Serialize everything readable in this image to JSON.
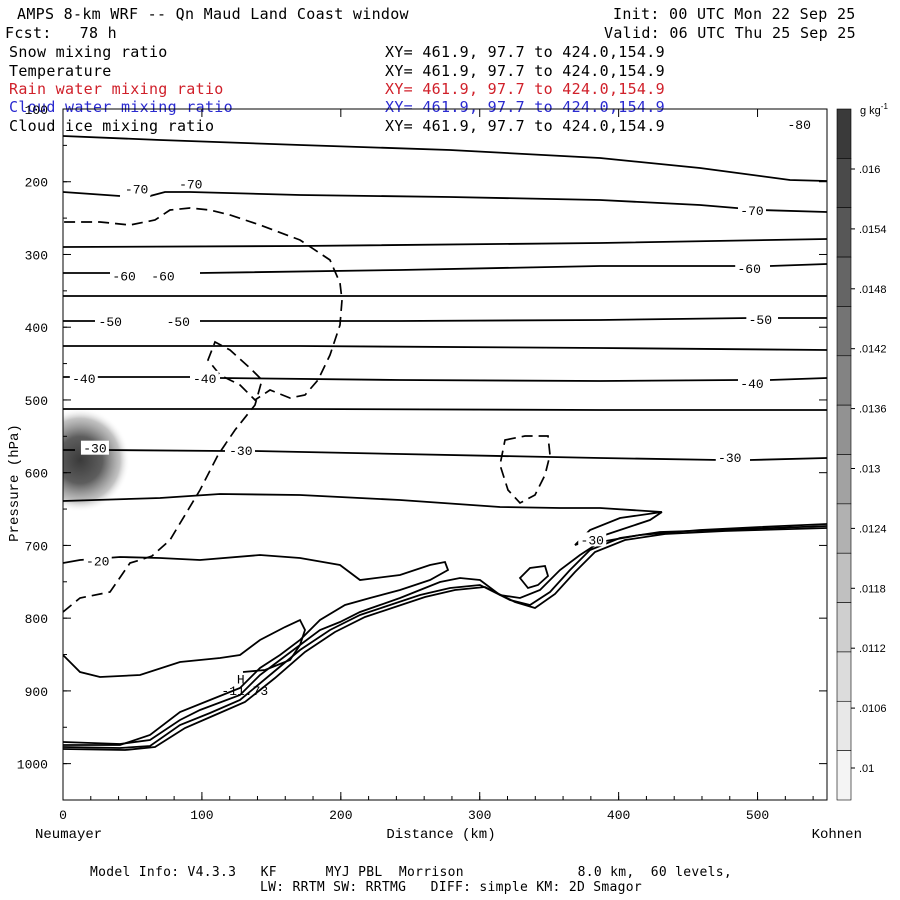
{
  "header": {
    "title": "AMPS 8-km WRF -- Qn Maud Land Coast window",
    "forecast": "Fcst:   78 h",
    "init": "Init: 00 UTC Mon 22 Sep 25",
    "valid": "Valid: 06 UTC Thu 25 Sep 25"
  },
  "legend": [
    {
      "name": "Snow mixing ratio",
      "xy": "XY= 461.9, 97.7 to 424.0,154.9",
      "color": "#000000"
    },
    {
      "name": "Temperature",
      "xy": "XY= 461.9, 97.7 to 424.0,154.9",
      "color": "#000000"
    },
    {
      "name": "Rain water mixing ratio",
      "xy": "XY= 461.9, 97.7 to 424.0,154.9",
      "color": "#d0202a"
    },
    {
      "name": "Cloud water mixing ratio",
      "xy": "XY= 461.9, 97.7 to 424.0,154.9",
      "color": "#2a2ad0"
    },
    {
      "name": "Cloud ice mixing ratio",
      "xy": "XY= 461.9, 97.7 to 424.0,154.9",
      "color": "#000000"
    }
  ],
  "footer": {
    "line1": "Model Info: V4.3.3   KF      MYJ PBL  Morrison              8.0 km,  60 levels,",
    "line2": "LW: RRTM SW: RRTMG   DIFF: simple KM: 2D Smagor"
  },
  "chart_data": {
    "type": "contour",
    "title": "AMPS 8-km WRF -- Qn Maud Land Coast window",
    "xlabel": "Distance (km)",
    "ylabel": "Pressure (hPa)",
    "xlim": [
      0,
      550
    ],
    "ylim": [
      1050,
      100
    ],
    "x_ticks": [
      0,
      100,
      200,
      300,
      400,
      500
    ],
    "y_ticks": [
      100,
      200,
      300,
      400,
      500,
      600,
      700,
      800,
      900,
      1000
    ],
    "endpoints": {
      "left": "Neumayer",
      "right": "Kohnen"
    },
    "colorbar": {
      "units": "g kg",
      "units_exponent": "-1",
      "labels": [
        ".016",
        ".0154",
        ".0148",
        ".0142",
        ".0136",
        ".013",
        ".0124",
        ".0118",
        ".0112",
        ".0106",
        ".01"
      ],
      "colors": [
        "#3a3a3a",
        "#4a4a4a",
        "#575757",
        "#656565",
        "#747474",
        "#838383",
        "#929292",
        "#a2a2a2",
        "#b1b1b1",
        "#c0c0c0",
        "#cfcfcf",
        "#dcdcdc",
        "#e8e8e8",
        "#f4f4f4"
      ]
    },
    "temperature_labels": [
      {
        "text": "-80",
        "x": 530,
        "p": 122
      },
      {
        "text": "-70",
        "x": 53,
        "p": 211
      },
      {
        "text": "-70",
        "x": 92,
        "p": 204
      },
      {
        "text": "-70",
        "x": 496,
        "p": 240
      },
      {
        "text": "-60",
        "x": 44,
        "p": 330
      },
      {
        "text": "-60",
        "x": 72,
        "p": 330
      },
      {
        "text": "-60",
        "x": 494,
        "p": 320
      },
      {
        "text": "-50",
        "x": 34,
        "p": 393
      },
      {
        "text": "-50",
        "x": 83,
        "p": 393
      },
      {
        "text": "-50",
        "x": 502,
        "p": 390
      },
      {
        "text": "-40",
        "x": 15,
        "p": 471
      },
      {
        "text": "-40",
        "x": 102,
        "p": 471
      },
      {
        "text": "-40",
        "x": 496,
        "p": 478
      },
      {
        "text": "-30",
        "x": 23,
        "p": 567
      },
      {
        "text": "-30",
        "x": 128,
        "p": 570
      },
      {
        "text": "-30",
        "x": 480,
        "p": 580
      },
      {
        "text": "-30",
        "x": 381,
        "p": 693
      },
      {
        "text": "-20",
        "x": 25,
        "p": 722
      }
    ],
    "high": {
      "text": "H",
      "x": 128,
      "p": 884
    },
    "high_value": {
      "text": "-11.73",
      "x": 128,
      "p": 900
    },
    "snow_max": {
      "x": 20,
      "p": 585,
      "value": ".016"
    }
  }
}
